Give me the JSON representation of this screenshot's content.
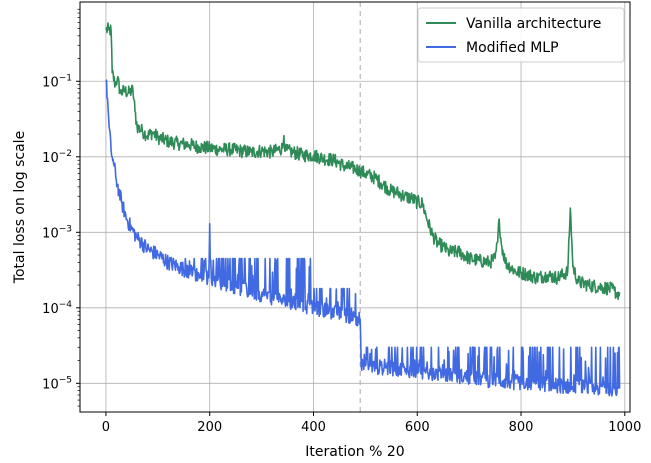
{
  "chart_data": {
    "type": "line",
    "xlabel": "Iteration % 20",
    "ylabel": "Total loss on log scale",
    "xlim": [
      -50,
      1010
    ],
    "ylim_log10": [
      -5.38,
      0.05
    ],
    "y_scale": "log",
    "grid": true,
    "legend_position": "top-right",
    "x_ticks": [
      0,
      200,
      400,
      600,
      800,
      1000
    ],
    "x_tick_labels": [
      "0",
      "200",
      "400",
      "600",
      "800",
      "1000"
    ],
    "y_ticks_exp": [
      -1,
      -2,
      -3,
      -4,
      -5
    ],
    "y_tick_base": "10",
    "vertical_marker_x": 490,
    "series": [
      {
        "name": "Vanilla architecture",
        "color": "#2e8b57",
        "points": [
          [
            0,
            0.48
          ],
          [
            5,
            0.48
          ],
          [
            10,
            0.47
          ],
          [
            12,
            0.13
          ],
          [
            18,
            0.09
          ],
          [
            22,
            0.11
          ],
          [
            28,
            0.07
          ],
          [
            35,
            0.075
          ],
          [
            45,
            0.07
          ],
          [
            52,
            0.078
          ],
          [
            56,
            0.04
          ],
          [
            60,
            0.025
          ],
          [
            70,
            0.022
          ],
          [
            80,
            0.019
          ],
          [
            90,
            0.021
          ],
          [
            100,
            0.018
          ],
          [
            120,
            0.016
          ],
          [
            140,
            0.015
          ],
          [
            160,
            0.0145
          ],
          [
            180,
            0.0135
          ],
          [
            200,
            0.013
          ],
          [
            220,
            0.0125
          ],
          [
            240,
            0.0125
          ],
          [
            260,
            0.012
          ],
          [
            280,
            0.0115
          ],
          [
            300,
            0.012
          ],
          [
            320,
            0.0115
          ],
          [
            340,
            0.013
          ],
          [
            343,
            0.019
          ],
          [
            346,
            0.012
          ],
          [
            360,
            0.0115
          ],
          [
            380,
            0.0105
          ],
          [
            400,
            0.0105
          ],
          [
            420,
            0.0095
          ],
          [
            440,
            0.009
          ],
          [
            460,
            0.0075
          ],
          [
            480,
            0.007
          ],
          [
            490,
            0.0065
          ],
          [
            500,
            0.006
          ],
          [
            520,
            0.0052
          ],
          [
            530,
            0.0045
          ],
          [
            540,
            0.004
          ],
          [
            550,
            0.0035
          ],
          [
            560,
            0.0034
          ],
          [
            575,
            0.003
          ],
          [
            590,
            0.0028
          ],
          [
            600,
            0.0025
          ],
          [
            610,
            0.0024
          ],
          [
            620,
            0.0014
          ],
          [
            630,
            0.0009
          ],
          [
            640,
            0.0007
          ],
          [
            650,
            0.00065
          ],
          [
            660,
            0.00055
          ],
          [
            680,
            0.00055
          ],
          [
            700,
            0.00045
          ],
          [
            720,
            0.00042
          ],
          [
            740,
            0.0004
          ],
          [
            750,
            0.00045
          ],
          [
            755,
            0.00075
          ],
          [
            758,
            0.0015
          ],
          [
            762,
            0.0007
          ],
          [
            770,
            0.0004
          ],
          [
            790,
            0.0003
          ],
          [
            810,
            0.00028
          ],
          [
            830,
            0.00025
          ],
          [
            850,
            0.00027
          ],
          [
            870,
            0.00025
          ],
          [
            890,
            0.0003
          ],
          [
            895,
            0.0021
          ],
          [
            900,
            0.00035
          ],
          [
            910,
            0.00022
          ],
          [
            930,
            0.0002
          ],
          [
            950,
            0.00019
          ],
          [
            970,
            0.00018
          ],
          [
            980,
            0.00017
          ],
          [
            985,
            0.00015
          ],
          [
            990,
            0.00016
          ]
        ],
        "noise": 0.09
      },
      {
        "name": "Modified MLP",
        "color": "#4169e1",
        "points": [
          [
            0,
            0.1
          ],
          [
            3,
            0.06
          ],
          [
            6,
            0.025
          ],
          [
            10,
            0.012
          ],
          [
            15,
            0.008
          ],
          [
            20,
            0.005
          ],
          [
            25,
            0.0035
          ],
          [
            30,
            0.0025
          ],
          [
            40,
            0.0015
          ],
          [
            50,
            0.0011
          ],
          [
            60,
            0.00085
          ],
          [
            80,
            0.0006
          ],
          [
            100,
            0.0005
          ],
          [
            120,
            0.0004
          ],
          [
            140,
            0.00035
          ],
          [
            160,
            0.0003
          ],
          [
            180,
            0.00027
          ],
          [
            198,
            0.00025
          ],
          [
            200,
            0.0013
          ],
          [
            203,
            0.00025
          ],
          [
            220,
            0.00022
          ],
          [
            250,
            0.00019
          ],
          [
            280,
            0.00016
          ],
          [
            300,
            0.00015
          ],
          [
            330,
            0.00013
          ],
          [
            360,
            0.000115
          ],
          [
            400,
            0.0001
          ],
          [
            430,
            9e-05
          ],
          [
            460,
            8e-05
          ],
          [
            480,
            7.5e-05
          ],
          [
            490,
            7e-05
          ],
          [
            492,
            1.7e-05
          ],
          [
            500,
            1.7e-05
          ],
          [
            540,
            1.6e-05
          ],
          [
            580,
            1.5e-05
          ],
          [
            620,
            1.4e-05
          ],
          [
            660,
            1.3e-05
          ],
          [
            700,
            1.2e-05
          ],
          [
            740,
            1.1e-05
          ],
          [
            780,
            1.05e-05
          ],
          [
            820,
            1e-05
          ],
          [
            860,
            9.5e-06
          ],
          [
            900,
            9e-06
          ],
          [
            940,
            8.8e-06
          ],
          [
            980,
            8.5e-06
          ],
          [
            990,
            8.5e-06
          ]
        ],
        "noise": 0.1,
        "spikes": [
          [
            150,
            400,
            0.00045
          ],
          [
            400,
            490,
            0.00018
          ],
          [
            492,
            990,
            3e-05
          ]
        ]
      }
    ]
  }
}
